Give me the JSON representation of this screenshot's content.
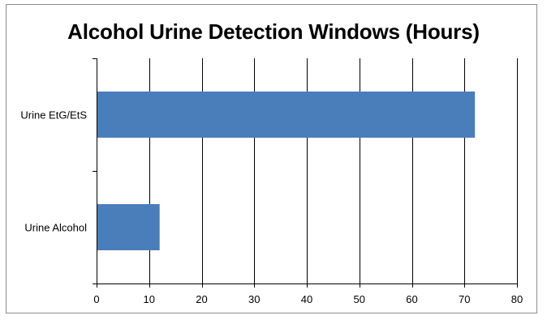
{
  "chart_data": {
    "type": "bar",
    "orientation": "horizontal",
    "title": "Alcohol Urine Detection Windows (Hours)",
    "categories": [
      "Urine EtG/EtS",
      "Urine Alcohol"
    ],
    "values": [
      72,
      12
    ],
    "xlim": [
      0,
      80
    ],
    "x_ticks": [
      0,
      10,
      20,
      30,
      40,
      50,
      60,
      70,
      80
    ],
    "grid": "vertical",
    "legend": "none",
    "bar_color": "#4a7ebb"
  }
}
